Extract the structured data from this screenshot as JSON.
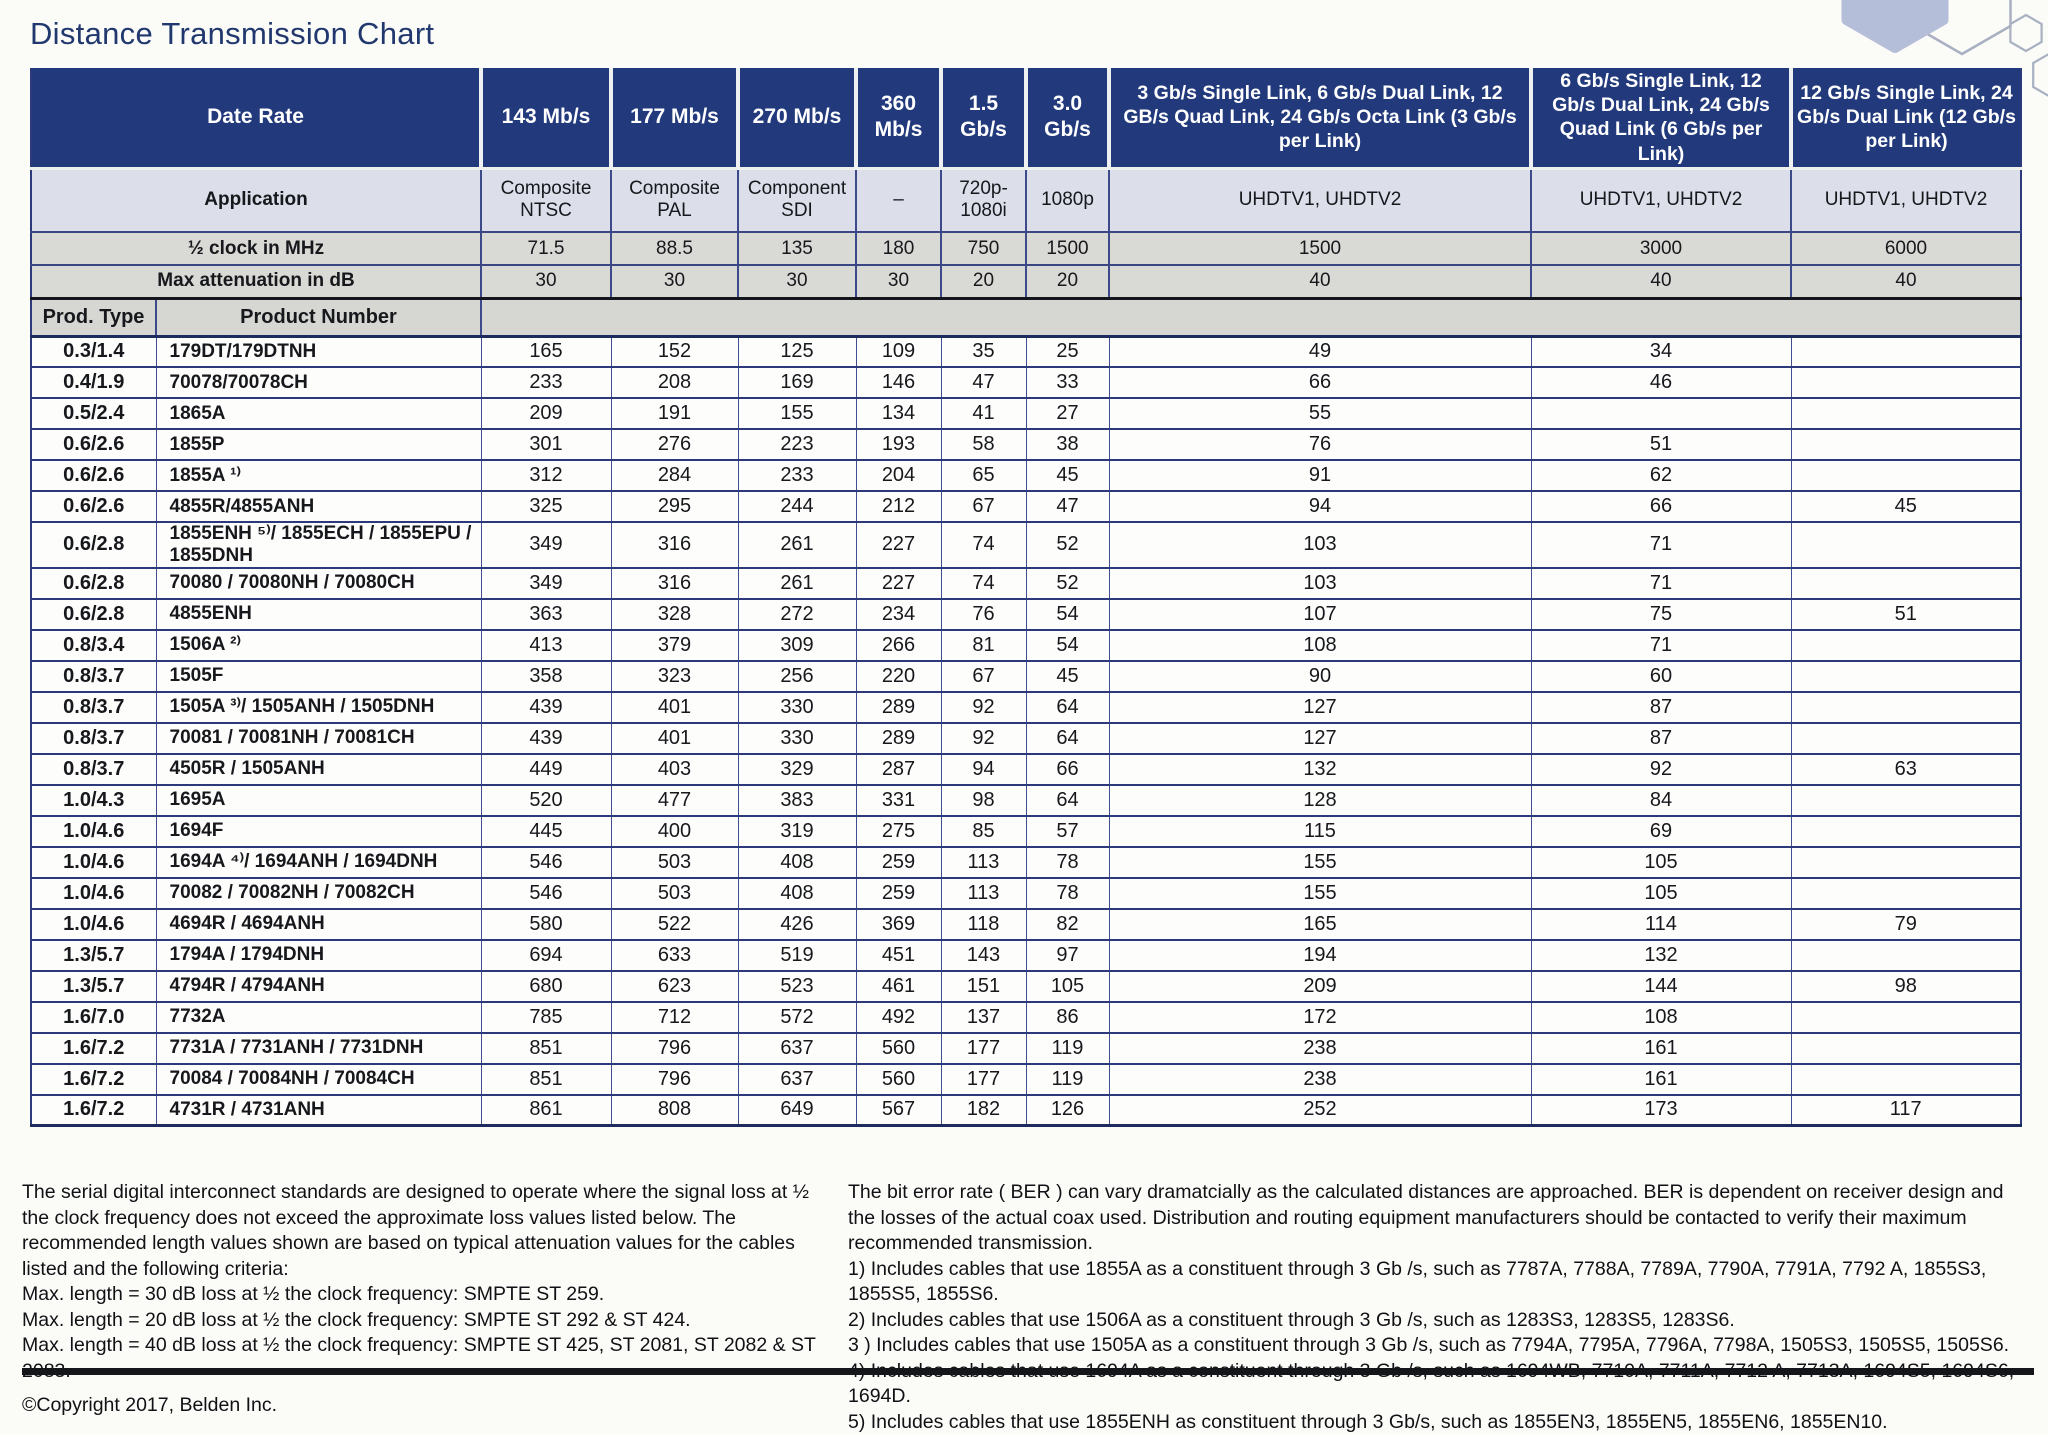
{
  "page": {
    "title": "Distance Transmission Chart"
  },
  "table": {
    "header": {
      "date_rate_label": "Date Rate",
      "application_label": "Application",
      "clock_label": "½ clock in MHz",
      "attenuation_label": "Max attenuation in dB",
      "prod_type_label": "Prod. Type",
      "product_number_label": "Product Number",
      "data_rates": [
        "143 Mb/s",
        "177 Mb/s",
        "270 Mb/s",
        "360 Mb/s",
        "1.5 Gb/s",
        "3.0 Gb/s",
        "3 Gb/s Single Link, 6 Gb/s Dual Link, 12 GB/s Quad Link, 24 Gb/s Octa Link (3 Gb/s per Link)",
        "6 Gb/s Single Link, 12 Gb/s Dual Link, 24 Gb/s Quad Link (6 Gb/s per Link)",
        "12 Gb/s Single Link, 24 Gb/s Dual Link (12 Gb/s per Link)"
      ],
      "applications": [
        "Composite NTSC",
        "Composite PAL",
        "Component SDI",
        "–",
        "720p-1080i",
        "1080p",
        "UHDTV1, UHDTV2",
        "UHDTV1, UHDTV2",
        "UHDTV1, UHDTV2"
      ],
      "clock_mhz": [
        "71.5",
        "88.5",
        "135",
        "180",
        "750",
        "1500",
        "1500",
        "3000",
        "6000"
      ],
      "max_attenuation_db": [
        "30",
        "30",
        "30",
        "30",
        "20",
        "20",
        "40",
        "40",
        "40"
      ]
    },
    "rows": [
      {
        "type": "0.3/1.4",
        "product": "179DT/179DTNH",
        "values": [
          "165",
          "152",
          "125",
          "109",
          "35",
          "25",
          "49",
          "34",
          ""
        ]
      },
      {
        "type": "0.4/1.9",
        "product": "70078/70078CH",
        "values": [
          "233",
          "208",
          "169",
          "146",
          "47",
          "33",
          "66",
          "46",
          ""
        ]
      },
      {
        "type": "0.5/2.4",
        "product": "1865A",
        "values": [
          "209",
          "191",
          "155",
          "134",
          "41",
          "27",
          "55",
          "",
          ""
        ]
      },
      {
        "type": "0.6/2.6",
        "product": "1855P",
        "values": [
          "301",
          "276",
          "223",
          "193",
          "58",
          "38",
          "76",
          "51",
          ""
        ]
      },
      {
        "type": "0.6/2.6",
        "product": "1855A ¹⁾",
        "values": [
          "312",
          "284",
          "233",
          "204",
          "65",
          "45",
          "91",
          "62",
          ""
        ]
      },
      {
        "type": "0.6/2.6",
        "product": "4855R/4855ANH",
        "values": [
          "325",
          "295",
          "244",
          "212",
          "67",
          "47",
          "94",
          "66",
          "45"
        ]
      },
      {
        "type": "0.6/2.8",
        "product": "1855ENH ⁵⁾/ 1855ECH / 1855EPU / 1855DNH",
        "values": [
          "349",
          "316",
          "261",
          "227",
          "74",
          "52",
          "103",
          "71",
          ""
        ]
      },
      {
        "type": "0.6/2.8",
        "product": "70080 / 70080NH / 70080CH",
        "values": [
          "349",
          "316",
          "261",
          "227",
          "74",
          "52",
          "103",
          "71",
          ""
        ]
      },
      {
        "type": "0.6/2.8",
        "product": "4855ENH",
        "values": [
          "363",
          "328",
          "272",
          "234",
          "76",
          "54",
          "107",
          "75",
          "51"
        ]
      },
      {
        "type": "0.8/3.4",
        "product": "1506A ²⁾",
        "values": [
          "413",
          "379",
          "309",
          "266",
          "81",
          "54",
          "108",
          "71",
          ""
        ]
      },
      {
        "type": "0.8/3.7",
        "product": "1505F",
        "values": [
          "358",
          "323",
          "256",
          "220",
          "67",
          "45",
          "90",
          "60",
          ""
        ]
      },
      {
        "type": "0.8/3.7",
        "product": "1505A ³⁾/ 1505ANH / 1505DNH",
        "values": [
          "439",
          "401",
          "330",
          "289",
          "92",
          "64",
          "127",
          "87",
          ""
        ]
      },
      {
        "type": "0.8/3.7",
        "product": "70081 / 70081NH / 70081CH",
        "values": [
          "439",
          "401",
          "330",
          "289",
          "92",
          "64",
          "127",
          "87",
          ""
        ]
      },
      {
        "type": "0.8/3.7",
        "product": "4505R / 1505ANH",
        "values": [
          "449",
          "403",
          "329",
          "287",
          "94",
          "66",
          "132",
          "92",
          "63"
        ]
      },
      {
        "type": "1.0/4.3",
        "product": "1695A",
        "values": [
          "520",
          "477",
          "383",
          "331",
          "98",
          "64",
          "128",
          "84",
          ""
        ]
      },
      {
        "type": "1.0/4.6",
        "product": "1694F",
        "values": [
          "445",
          "400",
          "319",
          "275",
          "85",
          "57",
          "115",
          "69",
          ""
        ]
      },
      {
        "type": "1.0/4.6",
        "product": "1694A ⁴⁾/ 1694ANH / 1694DNH",
        "values": [
          "546",
          "503",
          "408",
          "259",
          "113",
          "78",
          "155",
          "105",
          ""
        ]
      },
      {
        "type": "1.0/4.6",
        "product": "70082 / 70082NH / 70082CH",
        "values": [
          "546",
          "503",
          "408",
          "259",
          "113",
          "78",
          "155",
          "105",
          ""
        ]
      },
      {
        "type": "1.0/4.6",
        "product": "4694R / 4694ANH",
        "values": [
          "580",
          "522",
          "426",
          "369",
          "118",
          "82",
          "165",
          "114",
          "79"
        ]
      },
      {
        "type": "1.3/5.7",
        "product": "1794A / 1794DNH",
        "values": [
          "694",
          "633",
          "519",
          "451",
          "143",
          "97",
          "194",
          "132",
          ""
        ]
      },
      {
        "type": "1.3/5.7",
        "product": "4794R / 4794ANH",
        "values": [
          "680",
          "623",
          "523",
          "461",
          "151",
          "105",
          "209",
          "144",
          "98"
        ]
      },
      {
        "type": "1.6/7.0",
        "product": "7732A",
        "values": [
          "785",
          "712",
          "572",
          "492",
          "137",
          "86",
          "172",
          "108",
          ""
        ]
      },
      {
        "type": "1.6/7.2",
        "product": "7731A / 7731ANH / 7731DNH",
        "values": [
          "851",
          "796",
          "637",
          "560",
          "177",
          "119",
          "238",
          "161",
          ""
        ]
      },
      {
        "type": "1.6/7.2",
        "product": "70084 / 70084NH / 70084CH",
        "values": [
          "851",
          "796",
          "637",
          "560",
          "177",
          "119",
          "238",
          "161",
          ""
        ]
      },
      {
        "type": "1.6/7.2",
        "product": "4731R / 4731ANH",
        "values": [
          "861",
          "808",
          "649",
          "567",
          "182",
          "126",
          "252",
          "173",
          "117"
        ]
      }
    ]
  },
  "notes": {
    "left": {
      "paragraph": "The serial digital interconnect standards are designed to operate where the signal loss at ½ the clock frequency does not exceed the approximate loss values listed below. The recommended length values shown are based on typical attenuation values for the cables listed and the following criteria:",
      "criteria": [
        "Max. length = 30 dB loss at ½ the clock frequency: SMPTE ST 259.",
        "Max. length = 20 dB loss at ½ the clock frequency: SMPTE ST 292 & ST 424.",
        "Max. length = 40 dB loss at ½ the clock frequency: SMPTE ST 425, ST 2081, ST 2082 & ST 2083."
      ],
      "copyright": "©Copyright 2017, Belden Inc."
    },
    "right": {
      "paragraph": "The bit error rate ( BER ) can vary dramatcially as the calculated distances are approached. BER is dependent on receiver design and the losses of the actual coax used. Distribution and routing equipment manufacturers should be contacted to verify their maximum recommended transmission.",
      "footnotes": [
        "1) Includes cables that use 1855A as a constituent through 3 Gb /s, such as 7787A, 7788A, 7789A, 7790A, 7791A, 7792 A, 1855S3, 1855S5, 1855S6.",
        "2) Includes cables that use 1506A as a constituent through 3 Gb /s, such as 1283S3, 1283S5, 1283S6.",
        "3 ) Includes cables that use 1505A as a constituent through 3 Gb /s, such as 7794A, 7795A, 7796A, 7798A, 1505S3, 1505S5, 1505S6.",
        "4) Includes cables that use 1694A as a constituent through 3 Gb /s, such as 1694WB, 7710A, 7711A, 7712 A, 7713A, 1694S5, 1694S6, 1694D.",
        "5) Includes cables that use 1855ENH as constituent through 3 Gb/s, such as 1855EN3, 1855EN5, 1855EN6, 1855EN10."
      ]
    }
  },
  "decoration": {
    "hexagon_fill_color": "#b5bed8",
    "hexagon_outline_color": "#a8b0c2"
  }
}
